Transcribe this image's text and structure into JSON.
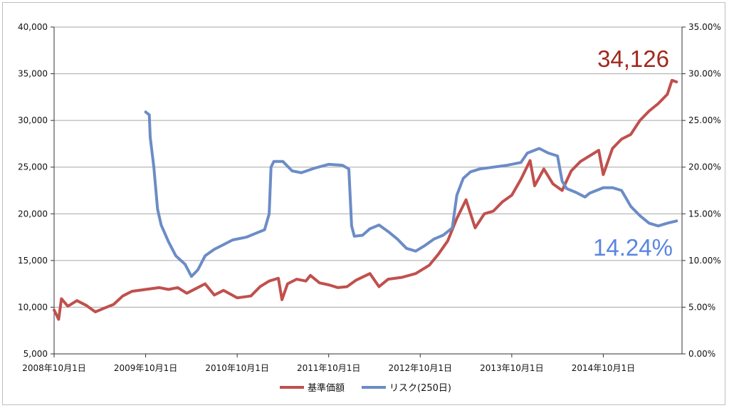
{
  "chart_data": {
    "type": "line",
    "y_left": {
      "min": 5000,
      "max": 40000,
      "ticks": [
        "5,000",
        "10,000",
        "15,000",
        "20,000",
        "25,000",
        "30,000",
        "35,000",
        "40,000"
      ]
    },
    "y_right": {
      "min": 0,
      "max": 35,
      "ticks": [
        "0.00%",
        "5.00%",
        "10.00%",
        "15.00%",
        "20.00%",
        "25.00%",
        "30.00%",
        "35.00%"
      ]
    },
    "x_ticks": [
      "2008年10月1日",
      "2009年10月1日",
      "2010年10月1日",
      "2011年10月1日",
      "2012年10月1日",
      "2013年10月1日",
      "2014年10月1日"
    ],
    "grid": "horizontal",
    "legend_position": "bottom",
    "series": [
      {
        "name": "基準価額",
        "axis": "left",
        "color": "#c0504d",
        "points": [
          [
            2008.75,
            9700
          ],
          [
            2008.8,
            8700
          ],
          [
            2008.83,
            10900
          ],
          [
            2008.9,
            10100
          ],
          [
            2009.0,
            10700
          ],
          [
            2009.1,
            10200
          ],
          [
            2009.2,
            9500
          ],
          [
            2009.3,
            9900
          ],
          [
            2009.4,
            10300
          ],
          [
            2009.5,
            11200
          ],
          [
            2009.6,
            11700
          ],
          [
            2009.75,
            11900
          ],
          [
            2009.9,
            12100
          ],
          [
            2010.0,
            11900
          ],
          [
            2010.1,
            12100
          ],
          [
            2010.2,
            11500
          ],
          [
            2010.3,
            12000
          ],
          [
            2010.4,
            12500
          ],
          [
            2010.5,
            11300
          ],
          [
            2010.6,
            11800
          ],
          [
            2010.75,
            11000
          ],
          [
            2010.9,
            11200
          ],
          [
            2011.0,
            12200
          ],
          [
            2011.1,
            12800
          ],
          [
            2011.2,
            13100
          ],
          [
            2011.24,
            10800
          ],
          [
            2011.3,
            12500
          ],
          [
            2011.4,
            13000
          ],
          [
            2011.5,
            12800
          ],
          [
            2011.55,
            13400
          ],
          [
            2011.65,
            12600
          ],
          [
            2011.75,
            12400
          ],
          [
            2011.85,
            12100
          ],
          [
            2011.95,
            12200
          ],
          [
            2012.05,
            12900
          ],
          [
            2012.2,
            13600
          ],
          [
            2012.3,
            12200
          ],
          [
            2012.4,
            13000
          ],
          [
            2012.55,
            13200
          ],
          [
            2012.7,
            13600
          ],
          [
            2012.85,
            14500
          ],
          [
            2012.95,
            15700
          ],
          [
            2013.05,
            17100
          ],
          [
            2013.15,
            19500
          ],
          [
            2013.25,
            21500
          ],
          [
            2013.35,
            18500
          ],
          [
            2013.45,
            20000
          ],
          [
            2013.55,
            20300
          ],
          [
            2013.65,
            21300
          ],
          [
            2013.75,
            22000
          ],
          [
            2013.85,
            23700
          ],
          [
            2013.95,
            25700
          ],
          [
            2014.0,
            23000
          ],
          [
            2014.1,
            24800
          ],
          [
            2014.2,
            23200
          ],
          [
            2014.3,
            22500
          ],
          [
            2014.4,
            24600
          ],
          [
            2014.5,
            25600
          ],
          [
            2014.6,
            26200
          ],
          [
            2014.7,
            26800
          ],
          [
            2014.75,
            24200
          ],
          [
            2014.85,
            27000
          ],
          [
            2014.95,
            28000
          ],
          [
            2015.05,
            28500
          ],
          [
            2015.15,
            30000
          ],
          [
            2015.25,
            31000
          ],
          [
            2015.35,
            31800
          ],
          [
            2015.45,
            32800
          ],
          [
            2015.5,
            34300
          ],
          [
            2015.55,
            34126
          ]
        ]
      },
      {
        "name": "リスク(250日)",
        "axis": "right",
        "color": "#6b8cc6",
        "points": [
          [
            2009.75,
            25.9
          ],
          [
            2009.79,
            25.6
          ],
          [
            2009.8,
            23.2
          ],
          [
            2009.84,
            20.0
          ],
          [
            2009.88,
            15.5
          ],
          [
            2009.92,
            13.8
          ],
          [
            2010.0,
            12.0
          ],
          [
            2010.08,
            10.5
          ],
          [
            2010.18,
            9.6
          ],
          [
            2010.25,
            8.3
          ],
          [
            2010.32,
            9.0
          ],
          [
            2010.4,
            10.5
          ],
          [
            2010.5,
            11.2
          ],
          [
            2010.6,
            11.7
          ],
          [
            2010.7,
            12.2
          ],
          [
            2010.85,
            12.5
          ],
          [
            2010.95,
            12.9
          ],
          [
            2011.05,
            13.3
          ],
          [
            2011.1,
            15.0
          ],
          [
            2011.12,
            20.0
          ],
          [
            2011.15,
            20.6
          ],
          [
            2011.25,
            20.6
          ],
          [
            2011.35,
            19.6
          ],
          [
            2011.45,
            19.4
          ],
          [
            2011.6,
            19.9
          ],
          [
            2011.75,
            20.3
          ],
          [
            2011.9,
            20.2
          ],
          [
            2011.97,
            19.8
          ],
          [
            2012.0,
            13.7
          ],
          [
            2012.03,
            12.6
          ],
          [
            2012.12,
            12.7
          ],
          [
            2012.2,
            13.4
          ],
          [
            2012.3,
            13.8
          ],
          [
            2012.4,
            13.1
          ],
          [
            2012.5,
            12.3
          ],
          [
            2012.6,
            11.3
          ],
          [
            2012.7,
            11.0
          ],
          [
            2012.8,
            11.6
          ],
          [
            2012.9,
            12.3
          ],
          [
            2013.0,
            12.7
          ],
          [
            2013.1,
            13.5
          ],
          [
            2013.15,
            17.0
          ],
          [
            2013.22,
            18.8
          ],
          [
            2013.3,
            19.5
          ],
          [
            2013.4,
            19.8
          ],
          [
            2013.55,
            20.0
          ],
          [
            2013.7,
            20.2
          ],
          [
            2013.85,
            20.5
          ],
          [
            2013.92,
            21.5
          ],
          [
            2014.05,
            22.0
          ],
          [
            2014.15,
            21.5
          ],
          [
            2014.25,
            21.2
          ],
          [
            2014.3,
            18.5
          ],
          [
            2014.35,
            17.7
          ],
          [
            2014.45,
            17.3
          ],
          [
            2014.55,
            16.8
          ],
          [
            2014.6,
            17.2
          ],
          [
            2014.75,
            17.8
          ],
          [
            2014.85,
            17.8
          ],
          [
            2014.95,
            17.5
          ],
          [
            2015.05,
            15.8
          ],
          [
            2015.15,
            14.8
          ],
          [
            2015.25,
            14.0
          ],
          [
            2015.35,
            13.7
          ],
          [
            2015.45,
            14.0
          ],
          [
            2015.55,
            14.24
          ]
        ]
      }
    ],
    "callouts": {
      "price": {
        "text": "34,126",
        "color": "#a0291d"
      },
      "risk": {
        "text": "14.24%",
        "color": "#5b86e0"
      }
    }
  }
}
